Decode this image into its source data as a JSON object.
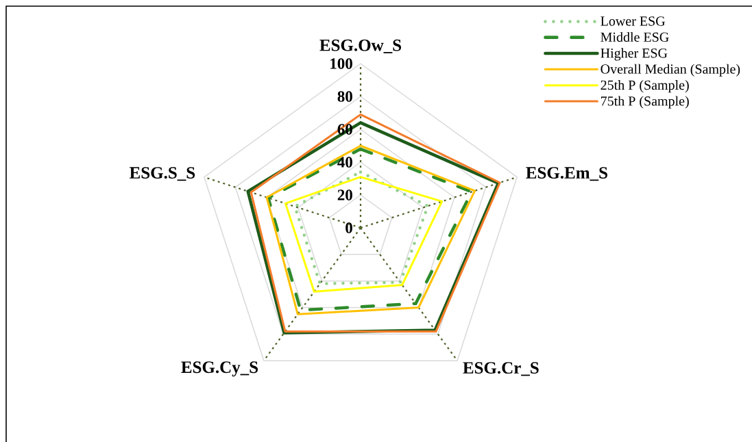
{
  "chart_data": {
    "type": "radar",
    "categories": [
      "ESG.Ow_S",
      "ESG.Em_S",
      "ESG.Cr_S",
      "ESG.Cy_S",
      "ESG.S_S"
    ],
    "ylim": [
      0,
      100
    ],
    "yticks": [
      0,
      20,
      40,
      60,
      80,
      100
    ],
    "grid": true,
    "legend": "top right",
    "series": [
      {
        "name": "Lower ESG",
        "color": "#92d08a",
        "line_style": "dotted",
        "values": [
          34,
          43,
          41,
          42,
          42
        ]
      },
      {
        "name": "Middle ESG",
        "color": "#2e8b2a",
        "line_style": "dashed",
        "values": [
          48,
          71,
          57,
          62,
          59
        ]
      },
      {
        "name": "Higher ESG",
        "color": "#1e5b1a",
        "line_style": "solid",
        "values": [
          64,
          88,
          77,
          79,
          72
        ]
      },
      {
        "name": "Overall Median (Sample)",
        "color": "#ffc000",
        "line_style": "solid",
        "values": [
          50,
          73,
          60,
          65,
          60
        ]
      },
      {
        "name": "25th  P (Sample)",
        "color": "#ffff00",
        "line_style": "solid",
        "values": [
          31,
          52,
          43,
          48,
          48
        ]
      },
      {
        "name": "75th  P (Sample)",
        "color": "#f47c2a",
        "line_style": "solid",
        "values": [
          69,
          89,
          78,
          78,
          70
        ]
      }
    ]
  }
}
